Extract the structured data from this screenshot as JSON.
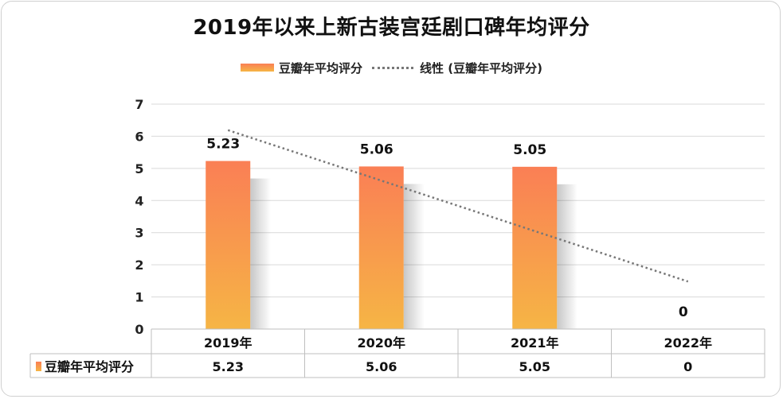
{
  "chart_data": {
    "type": "bar",
    "title": "2019年以来上新古装宫廷剧口碑年均评分",
    "categories": [
      "2019年",
      "2020年",
      "2021年",
      "2022年"
    ],
    "series": [
      {
        "name": "豆瓣年平均评分",
        "values": [
          5.23,
          5.06,
          5.05,
          0
        ],
        "color_top": "#fa7f55",
        "color_bottom": "#f6b545"
      }
    ],
    "trendline": {
      "name": "线性 (豆瓣年平均评分)",
      "color": "#777777"
    },
    "ylim": [
      0,
      7
    ],
    "yticks": [
      0,
      1,
      2,
      3,
      4,
      5,
      6,
      7
    ],
    "data_labels": [
      "5.23",
      "5.06",
      "5.05",
      "0"
    ],
    "grid": true,
    "legend_position": "top",
    "data_table": {
      "row_label": "豆瓣年平均评分",
      "values": [
        "5.23",
        "5.06",
        "5.05",
        "0"
      ]
    }
  }
}
